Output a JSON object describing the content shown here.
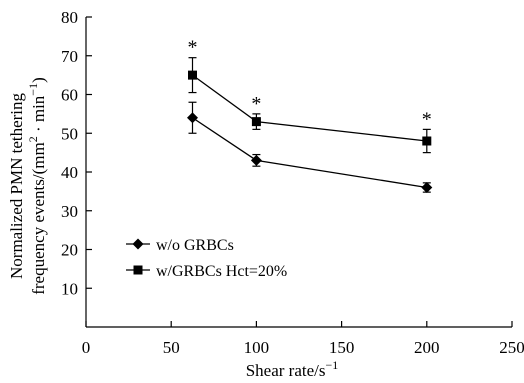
{
  "chart_data": {
    "type": "line",
    "xlabel": "Shear rate/s",
    "xlabel_sup": "−1",
    "ylabel_line1": "Normalized PMN tethering",
    "ylabel_line2": "frequency events/(mm",
    "ylabel_sup1": "2",
    "ylabel_mid": " · min",
    "ylabel_sup2": "−1",
    "ylabel_end": ")",
    "xlim": [
      0,
      250
    ],
    "ylim": [
      0,
      80
    ],
    "x_ticks": [
      0,
      50,
      100,
      150,
      200,
      250
    ],
    "y_ticks": [
      10,
      20,
      30,
      40,
      50,
      60,
      70,
      80
    ],
    "grid": false,
    "legend_position": "lower-left",
    "significance_marker": "*",
    "series": [
      {
        "name": "w/o GRBCs",
        "marker": "diamond",
        "x": [
          62.5,
          100,
          200
        ],
        "y": [
          54,
          43,
          36
        ],
        "error": [
          4,
          1.5,
          1.2
        ]
      },
      {
        "name": "w/GRBCs Hct=20%",
        "marker": "square",
        "x": [
          62.5,
          100,
          200
        ],
        "y": [
          65,
          53,
          48
        ],
        "error": [
          4.5,
          2,
          3
        ],
        "significant": [
          true,
          true,
          true
        ]
      }
    ]
  }
}
